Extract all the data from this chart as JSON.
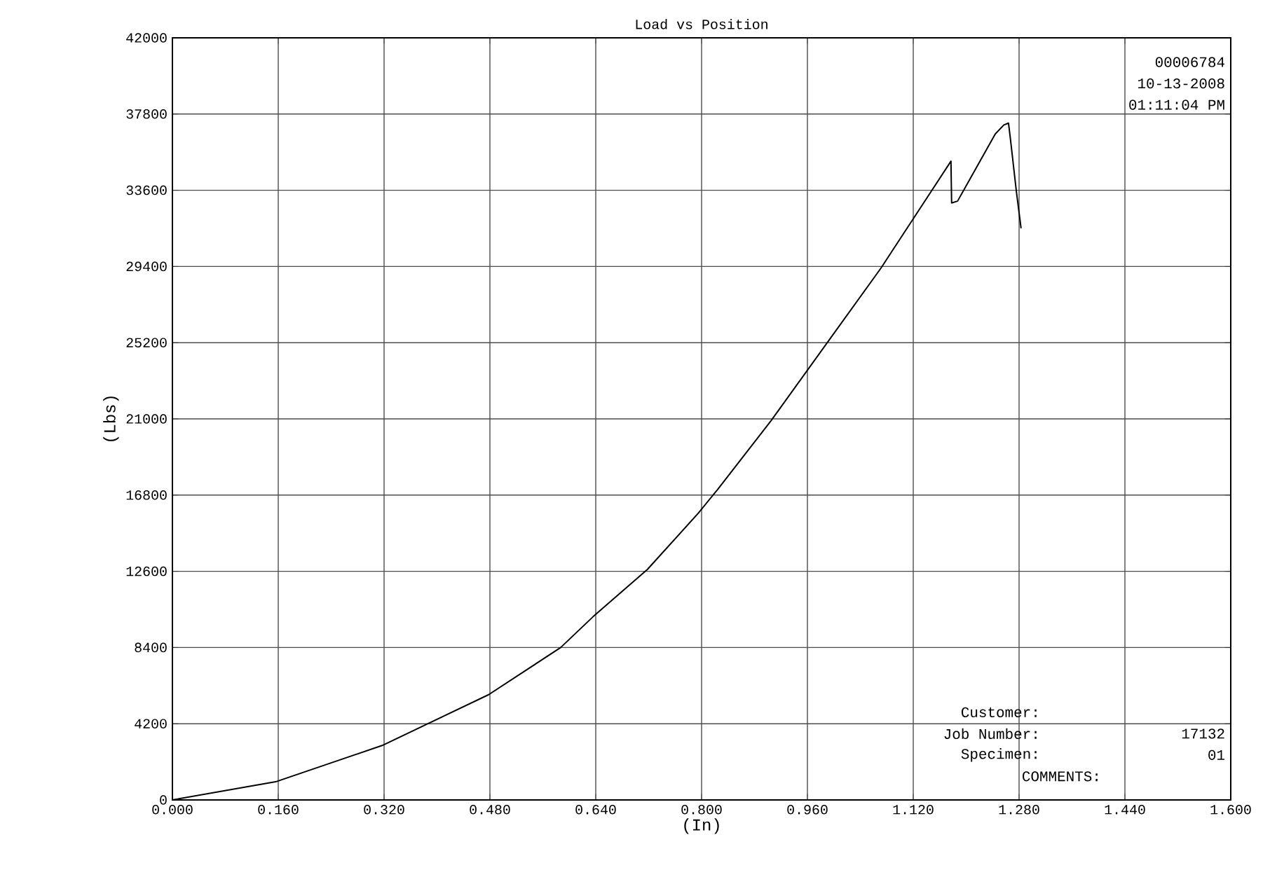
{
  "chart_data": {
    "type": "line",
    "title": "Load vs Position",
    "xlabel": "(In)",
    "ylabel": "(Lbs)",
    "x": [
      0.0,
      0.156,
      0.317,
      0.478,
      0.587,
      0.636,
      0.718,
      0.795,
      0.824,
      0.905,
      0.99,
      1.071,
      1.177,
      1.178,
      1.187,
      1.244,
      1.257,
      1.264,
      1.267,
      1.276,
      1.283
    ],
    "series": [
      {
        "color": "#000000",
        "values": [
          0,
          1000,
          3000,
          5800,
          8400,
          10100,
          12700,
          15800,
          17100,
          20900,
          25200,
          29300,
          35200,
          32900,
          33000,
          36700,
          37200,
          37300,
          36400,
          33500,
          31500
        ]
      }
    ],
    "xlim": [
      0,
      1.6
    ],
    "ylim": [
      0,
      42000
    ],
    "xticks": [
      {
        "value": 0,
        "label": "0.000"
      },
      {
        "value": 0.16,
        "label": "0.160"
      },
      {
        "value": 0.32,
        "label": "0.320"
      },
      {
        "value": 0.48,
        "label": "0.480"
      },
      {
        "value": 0.64,
        "label": "0.640"
      },
      {
        "value": 0.8,
        "label": "0.800"
      },
      {
        "value": 0.96,
        "label": "0.960"
      },
      {
        "value": 1.12,
        "label": "1.120"
      },
      {
        "value": 1.28,
        "label": "1.280"
      },
      {
        "value": 1.44,
        "label": "1.440"
      },
      {
        "value": 1.6,
        "label": "1.600"
      }
    ],
    "yticks": [
      0,
      4200,
      8400,
      12600,
      16800,
      21000,
      25200,
      29400,
      33600,
      37800,
      42000
    ],
    "grid": true,
    "marker": "none",
    "line_style": "solid",
    "annotations": [
      "00006784",
      "10-13-2008",
      "01:11:04 PM",
      "Customer:",
      "Job Number:",
      "17132",
      "Specimen:",
      "01",
      "COMMENTS:"
    ]
  }
}
